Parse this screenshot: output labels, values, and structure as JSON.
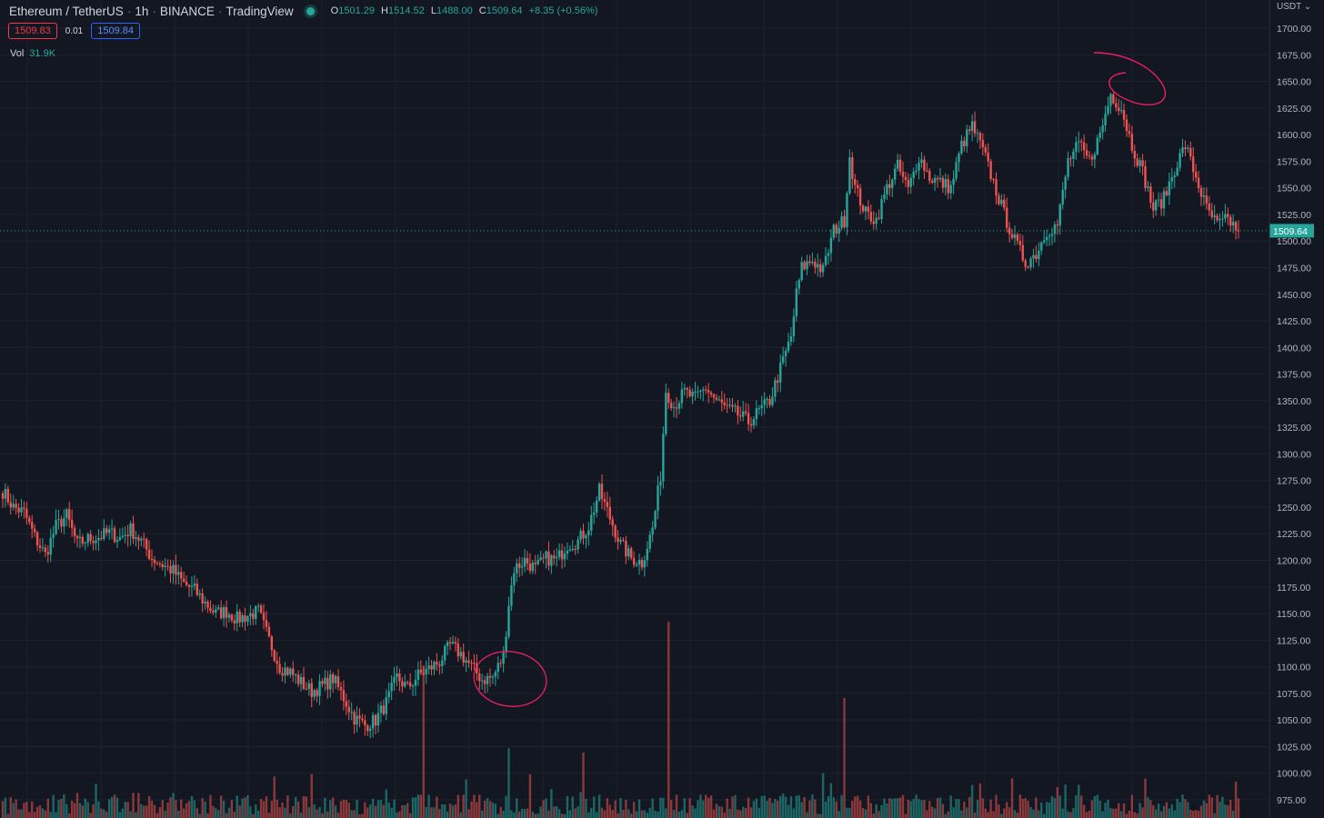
{
  "header": {
    "symbol": "Ethereum / TetherUS",
    "interval": "1h",
    "exchange": "BINANCE",
    "source": "TradingView",
    "open_key": "O",
    "open": "1501.29",
    "high_key": "H",
    "high": "1514.52",
    "low_key": "L",
    "low": "1488.00",
    "close_key": "C",
    "close": "1509.64",
    "change": "+8.35 (+0.56%)"
  },
  "quotes": {
    "sell": "1509.83",
    "spread": "0.01",
    "buy": "1509.84"
  },
  "volume": {
    "label": "Vol",
    "value": "31.9K"
  },
  "currency_menu": "USDT ⌄",
  "colors": {
    "up": "#26a69a",
    "down": "#ef5350",
    "background": "#131722",
    "annotation": "#e91e63"
  },
  "chart_data": {
    "type": "candlestick",
    "ylim": [
      965,
      1715
    ],
    "y_ticks": [
      1700,
      1675,
      1650,
      1625,
      1600,
      1575,
      1550,
      1525,
      1500,
      1475,
      1450,
      1425,
      1400,
      1375,
      1350,
      1325,
      1300,
      1275,
      1250,
      1225,
      1200,
      1175,
      1150,
      1125,
      1100,
      1075,
      1050,
      1025,
      1000,
      975
    ],
    "y_tick_labels": [
      "1700.00",
      "1675.00",
      "1650.00",
      "1625.00",
      "1600.00",
      "1575.00",
      "1550.00",
      "1525.00",
      "1500.00",
      "1475.00",
      "1450.00",
      "1425.00",
      "1400.00",
      "1375.00",
      "1350.00",
      "1325.00",
      "1300.00",
      "1275.00",
      "1250.00",
      "1225.00",
      "1200.00",
      "1175.00",
      "1150.00",
      "1125.00",
      "1100.00",
      "1075.00",
      "1050.00",
      "1025.00",
      "1000.00",
      "975.00"
    ],
    "last_price": 1509.64,
    "last_price_label": "1509.64",
    "path": [
      [
        0,
        1265
      ],
      [
        4,
        1250
      ],
      [
        8,
        1245
      ],
      [
        12,
        1222
      ],
      [
        16,
        1205
      ],
      [
        20,
        1232
      ],
      [
        24,
        1242
      ],
      [
        28,
        1215
      ],
      [
        32,
        1220
      ],
      [
        36,
        1222
      ],
      [
        40,
        1226
      ],
      [
        44,
        1221
      ],
      [
        48,
        1229
      ],
      [
        52,
        1218
      ],
      [
        56,
        1202
      ],
      [
        60,
        1196
      ],
      [
        64,
        1190
      ],
      [
        68,
        1178
      ],
      [
        72,
        1172
      ],
      [
        76,
        1160
      ],
      [
        80,
        1150
      ],
      [
        84,
        1152
      ],
      [
        88,
        1145
      ],
      [
        92,
        1148
      ],
      [
        96,
        1152
      ],
      [
        100,
        1125
      ],
      [
        104,
        1100
      ],
      [
        108,
        1095
      ],
      [
        112,
        1085
      ],
      [
        116,
        1077
      ],
      [
        120,
        1082
      ],
      [
        124,
        1089
      ],
      [
        128,
        1071
      ],
      [
        132,
        1052
      ],
      [
        136,
        1045
      ],
      [
        140,
        1050
      ],
      [
        144,
        1066
      ],
      [
        148,
        1090
      ],
      [
        152,
        1080
      ],
      [
        156,
        1092
      ],
      [
        160,
        1098
      ],
      [
        164,
        1105
      ],
      [
        168,
        1120
      ],
      [
        172,
        1112
      ],
      [
        176,
        1100
      ],
      [
        180,
        1088
      ],
      [
        184,
        1090
      ],
      [
        188,
        1110
      ],
      [
        190,
        1160
      ],
      [
        192,
        1192
      ],
      [
        196,
        1200
      ],
      [
        200,
        1192
      ],
      [
        204,
        1202
      ],
      [
        208,
        1200
      ],
      [
        212,
        1215
      ],
      [
        216,
        1218
      ],
      [
        220,
        1232
      ],
      [
        224,
        1265
      ],
      [
        228,
        1240
      ],
      [
        232,
        1215
      ],
      [
        236,
        1202
      ],
      [
        240,
        1198
      ],
      [
        244,
        1230
      ],
      [
        247,
        1280
      ],
      [
        249,
        1360
      ],
      [
        252,
        1345
      ],
      [
        256,
        1358
      ],
      [
        260,
        1352
      ],
      [
        264,
        1362
      ],
      [
        268,
        1350
      ],
      [
        272,
        1342
      ],
      [
        276,
        1337
      ],
      [
        280,
        1330
      ],
      [
        284,
        1340
      ],
      [
        288,
        1350
      ],
      [
        292,
        1380
      ],
      [
        296,
        1410
      ],
      [
        298,
        1450
      ],
      [
        300,
        1475
      ],
      [
        304,
        1482
      ],
      [
        308,
        1472
      ],
      [
        312,
        1510
      ],
      [
        316,
        1520
      ],
      [
        318,
        1580
      ],
      [
        320,
        1550
      ],
      [
        324,
        1526
      ],
      [
        328,
        1520
      ],
      [
        332,
        1550
      ],
      [
        336,
        1570
      ],
      [
        340,
        1548
      ],
      [
        344,
        1580
      ],
      [
        348,
        1560
      ],
      [
        352,
        1555
      ],
      [
        356,
        1550
      ],
      [
        360,
        1590
      ],
      [
        364,
        1608
      ],
      [
        368,
        1585
      ],
      [
        372,
        1555
      ],
      [
        376,
        1525
      ],
      [
        380,
        1500
      ],
      [
        384,
        1480
      ],
      [
        388,
        1488
      ],
      [
        392,
        1510
      ],
      [
        396,
        1515
      ],
      [
        400,
        1575
      ],
      [
        404,
        1590
      ],
      [
        408,
        1575
      ],
      [
        412,
        1600
      ],
      [
        416,
        1638
      ],
      [
        420,
        1625
      ],
      [
        424,
        1590
      ],
      [
        428,
        1565
      ],
      [
        432,
        1530
      ],
      [
        436,
        1540
      ],
      [
        440,
        1568
      ],
      [
        444,
        1590
      ],
      [
        448,
        1560
      ],
      [
        452,
        1530
      ],
      [
        456,
        1515
      ],
      [
        460,
        1520
      ],
      [
        464,
        1510
      ]
    ],
    "volume_spikes": [
      [
        158,
        70
      ],
      [
        250,
        90
      ],
      [
        190,
        32
      ],
      [
        316,
        55
      ],
      [
        218,
        30
      ]
    ],
    "annotations": [
      {
        "type": "ellipse",
        "description_index": "bottom-circle"
      },
      {
        "type": "ellipse",
        "description_index": "top-circle"
      }
    ]
  }
}
